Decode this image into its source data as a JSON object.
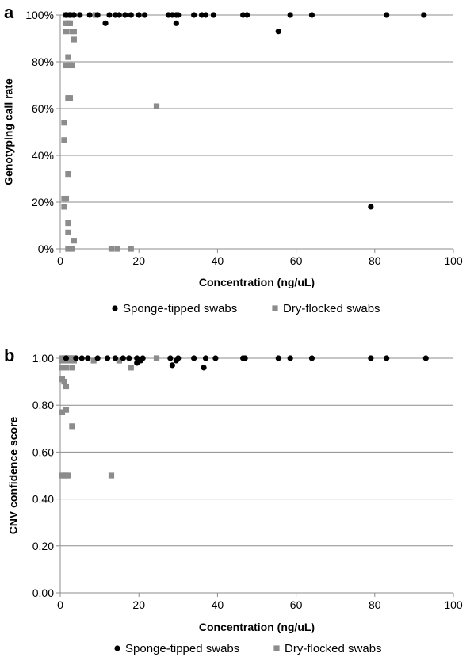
{
  "chart_data": [
    {
      "panel_label": "a",
      "type": "scatter",
      "title": "",
      "xlabel": "Concentration (ng/uL)",
      "ylabel": "Genotyping call rate",
      "xlim": [
        0,
        100
      ],
      "ylim": [
        0,
        1
      ],
      "x_ticks": [
        0,
        20,
        40,
        60,
        80,
        100
      ],
      "x_tick_labels": [
        "0",
        "20",
        "40",
        "60",
        "80",
        "100"
      ],
      "y_ticks": [
        0,
        0.2,
        0.4,
        0.6,
        0.8,
        1.0
      ],
      "y_tick_labels": [
        "0%",
        "20%",
        "40%",
        "60%",
        "80%",
        "100%"
      ],
      "grid": "horizontal",
      "legend_position": "bottom",
      "series": [
        {
          "name": "Sponge-tipped swabs",
          "marker": "circle",
          "color": "#000000",
          "points": [
            [
              1.5,
              1.0
            ],
            [
              2.5,
              1.0
            ],
            [
              3.5,
              1.0
            ],
            [
              5.0,
              1.0
            ],
            [
              7.5,
              1.0
            ],
            [
              9.5,
              1.0
            ],
            [
              11.5,
              0.965
            ],
            [
              12.5,
              1.0
            ],
            [
              14.0,
              1.0
            ],
            [
              15.0,
              1.0
            ],
            [
              16.5,
              1.0
            ],
            [
              18.0,
              1.0
            ],
            [
              20.0,
              1.0
            ],
            [
              21.5,
              1.0
            ],
            [
              27.5,
              1.0
            ],
            [
              28.5,
              1.0
            ],
            [
              29.5,
              1.0
            ],
            [
              29.5,
              0.965
            ],
            [
              30.0,
              1.0
            ],
            [
              34.0,
              1.0
            ],
            [
              36.0,
              1.0
            ],
            [
              37.0,
              1.0
            ],
            [
              39.0,
              1.0
            ],
            [
              46.5,
              1.0
            ],
            [
              47.5,
              1.0
            ],
            [
              55.5,
              0.93
            ],
            [
              58.5,
              1.0
            ],
            [
              64.0,
              1.0
            ],
            [
              79.0,
              0.18
            ],
            [
              83.0,
              1.0
            ],
            [
              92.5,
              1.0
            ]
          ]
        },
        {
          "name": "Dry-flocked swabs",
          "marker": "square",
          "color": "#8c8c8c",
          "points": [
            [
              1.5,
              1.0
            ],
            [
              2.0,
              1.0
            ],
            [
              3.0,
              1.0
            ],
            [
              9.0,
              1.0
            ],
            [
              1.5,
              0.965
            ],
            [
              2.0,
              0.965
            ],
            [
              2.5,
              0.965
            ],
            [
              1.5,
              0.93
            ],
            [
              3.0,
              0.93
            ],
            [
              3.5,
              0.93
            ],
            [
              3.5,
              0.895
            ],
            [
              2.0,
              0.82
            ],
            [
              1.5,
              0.785
            ],
            [
              2.5,
              0.785
            ],
            [
              3.0,
              0.785
            ],
            [
              2.0,
              0.645
            ],
            [
              2.5,
              0.645
            ],
            [
              24.5,
              0.61
            ],
            [
              1.0,
              0.54
            ],
            [
              1.0,
              0.465
            ],
            [
              2.0,
              0.32
            ],
            [
              1.0,
              0.215
            ],
            [
              1.5,
              0.215
            ],
            [
              1.0,
              0.18
            ],
            [
              2.0,
              0.11
            ],
            [
              2.0,
              0.07
            ],
            [
              3.5,
              0.035
            ],
            [
              2.0,
              0.0
            ],
            [
              3.0,
              0.0
            ],
            [
              13.0,
              0.0
            ],
            [
              14.5,
              0.0
            ],
            [
              18.0,
              0.0
            ]
          ]
        }
      ]
    },
    {
      "panel_label": "b",
      "type": "scatter",
      "title": "",
      "xlabel": "Concentration (ng/uL)",
      "ylabel": "CNV confidence score",
      "xlim": [
        0,
        100
      ],
      "ylim": [
        0,
        1
      ],
      "x_ticks": [
        0,
        20,
        40,
        60,
        80,
        100
      ],
      "x_tick_labels": [
        "0",
        "20",
        "40",
        "60",
        "80",
        "100"
      ],
      "y_ticks": [
        0,
        0.2,
        0.4,
        0.6,
        0.8,
        1.0
      ],
      "y_tick_labels": [
        "0.00",
        "0.20",
        "0.40",
        "0.60",
        "0.80",
        "1.00"
      ],
      "grid": "horizontal",
      "legend_position": "bottom",
      "series": [
        {
          "name": "Sponge-tipped swabs",
          "marker": "circle",
          "color": "#000000",
          "points": [
            [
              1.5,
              1.0
            ],
            [
              4.0,
              1.0
            ],
            [
              5.5,
              1.0
            ],
            [
              7.0,
              1.0
            ],
            [
              9.5,
              1.0
            ],
            [
              12.0,
              1.0
            ],
            [
              14.0,
              1.0
            ],
            [
              16.0,
              1.0
            ],
            [
              17.5,
              1.0
            ],
            [
              19.5,
              1.0
            ],
            [
              19.5,
              0.98
            ],
            [
              20.5,
              0.99
            ],
            [
              21.0,
              1.0
            ],
            [
              28.0,
              1.0
            ],
            [
              28.5,
              0.97
            ],
            [
              29.5,
              0.99
            ],
            [
              30.0,
              1.0
            ],
            [
              34.0,
              1.0
            ],
            [
              36.5,
              0.96
            ],
            [
              37.0,
              1.0
            ],
            [
              39.5,
              1.0
            ],
            [
              46.5,
              1.0
            ],
            [
              47.0,
              1.0
            ],
            [
              55.5,
              1.0
            ],
            [
              58.5,
              1.0
            ],
            [
              64.0,
              1.0
            ],
            [
              79.0,
              1.0
            ],
            [
              83.0,
              1.0
            ],
            [
              93.0,
              1.0
            ]
          ]
        },
        {
          "name": "Dry-flocked swabs",
          "marker": "square",
          "color": "#8c8c8c",
          "points": [
            [
              0.5,
              1.0
            ],
            [
              1.0,
              1.0
            ],
            [
              1.5,
              1.0
            ],
            [
              2.0,
              1.0
            ],
            [
              2.5,
              1.0
            ],
            [
              3.0,
              1.0
            ],
            [
              3.5,
              1.0
            ],
            [
              0.5,
              0.99
            ],
            [
              1.0,
              0.99
            ],
            [
              2.5,
              0.99
            ],
            [
              3.5,
              0.99
            ],
            [
              0.5,
              0.96
            ],
            [
              1.5,
              0.96
            ],
            [
              3.0,
              0.96
            ],
            [
              0.5,
              0.91
            ],
            [
              1.0,
              0.9
            ],
            [
              1.5,
              0.88
            ],
            [
              0.5,
              0.77
            ],
            [
              1.5,
              0.78
            ],
            [
              3.0,
              0.71
            ],
            [
              0.5,
              0.5
            ],
            [
              1.0,
              0.5
            ],
            [
              1.5,
              0.5
            ],
            [
              2.0,
              0.5
            ],
            [
              8.5,
              0.99
            ],
            [
              15.0,
              0.99
            ],
            [
              18.0,
              0.96
            ],
            [
              24.5,
              1.0
            ],
            [
              13.0,
              0.5
            ]
          ]
        }
      ]
    }
  ]
}
